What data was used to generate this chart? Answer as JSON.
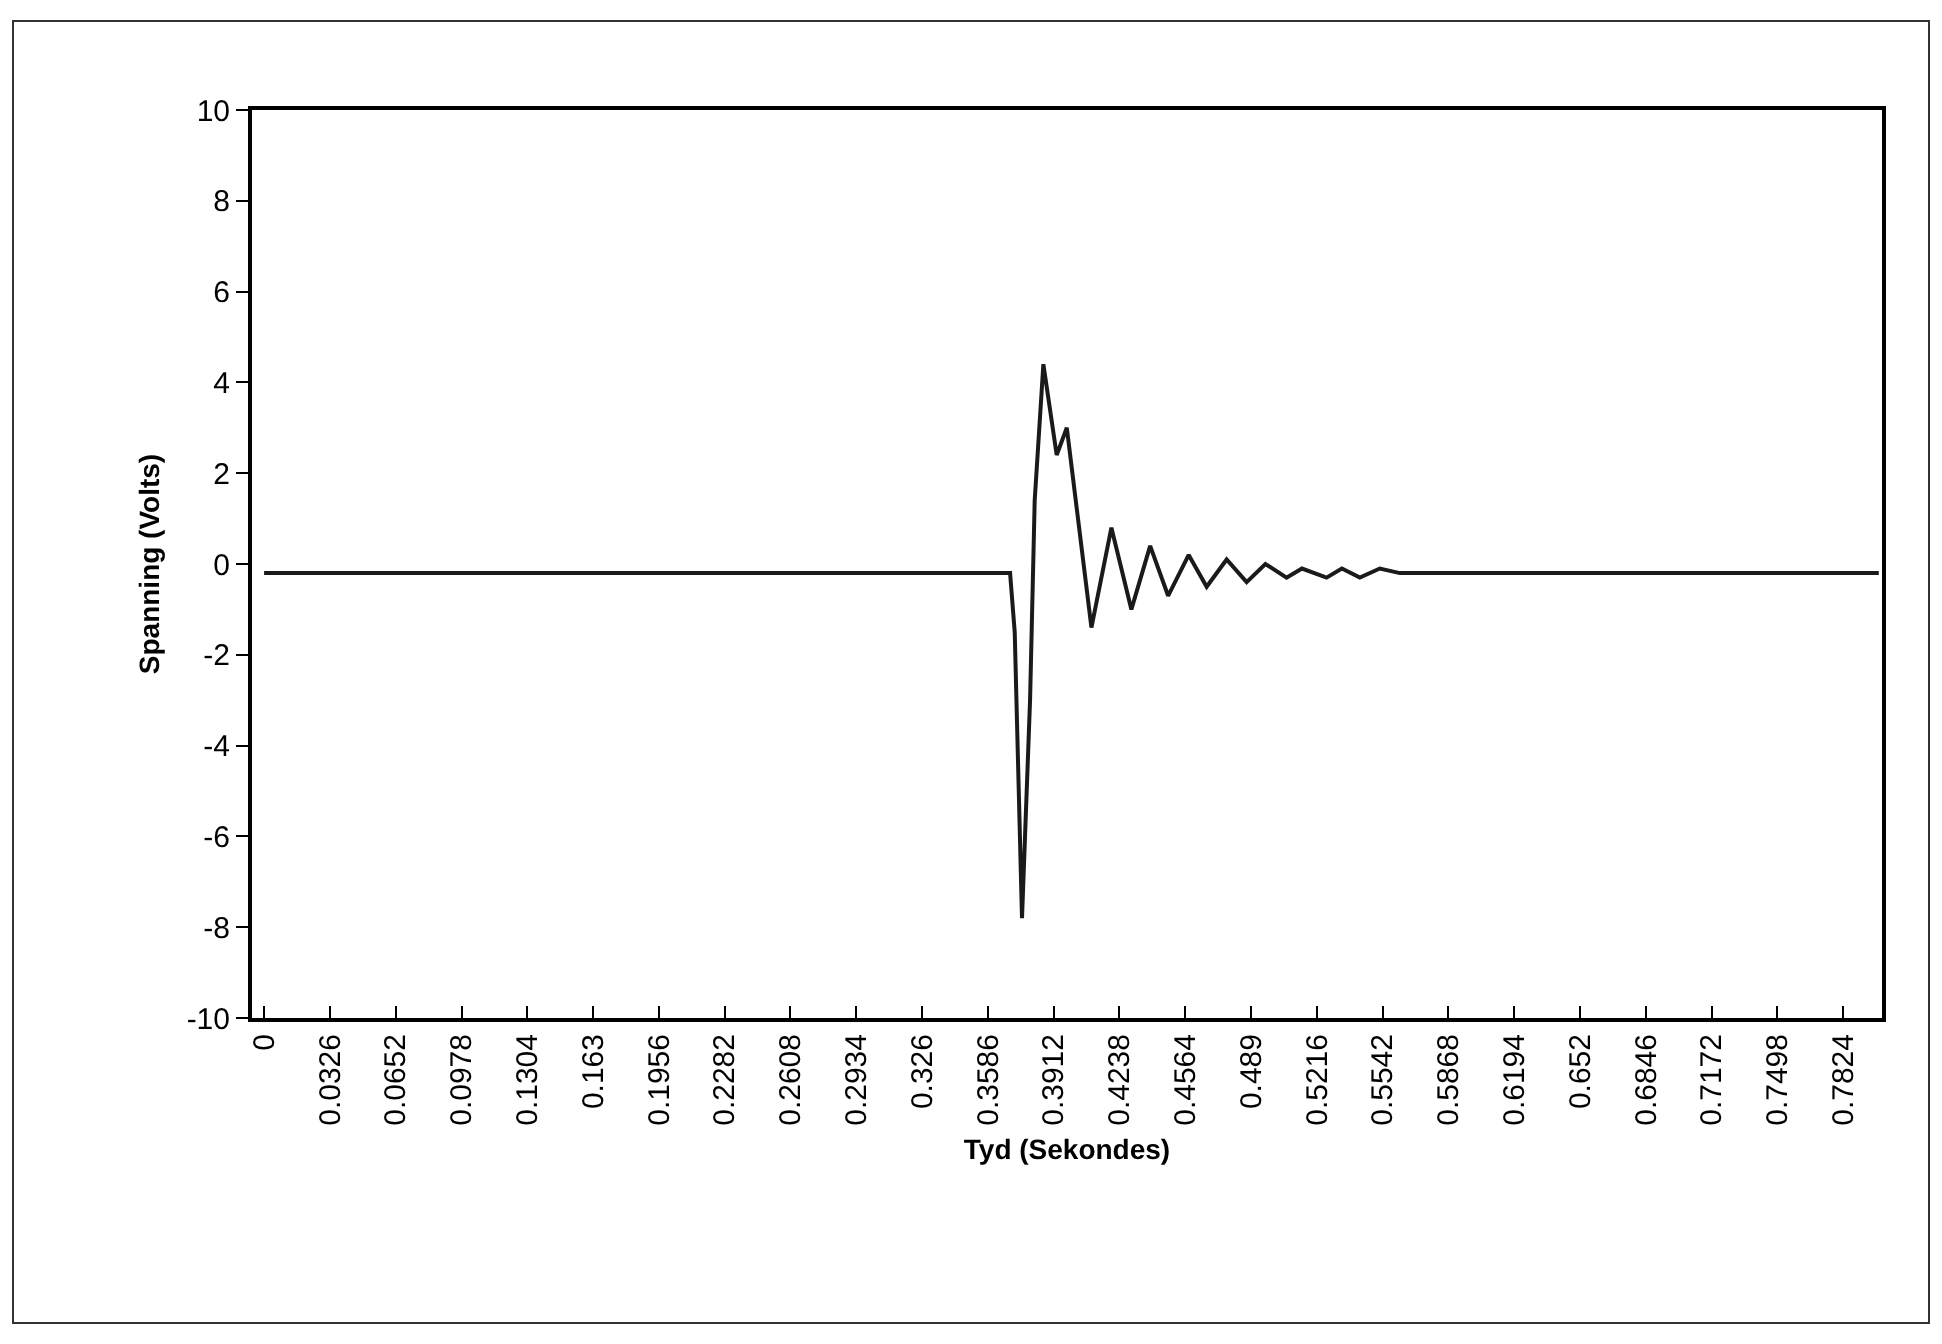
{
  "chart_data": {
    "type": "line",
    "xlabel": "Tyd (Sekondes)",
    "ylabel": "Spanning (Volts)",
    "x": [
      0,
      0.3696,
      0.3719,
      0.3755,
      0.3795,
      0.3818,
      0.3861,
      0.3927,
      0.3977,
      0.4099,
      0.4198,
      0.4297,
      0.439,
      0.4479,
      0.4581,
      0.467,
      0.4769,
      0.4868,
      0.4961,
      0.5066,
      0.5142,
      0.5264,
      0.534,
      0.5429,
      0.5528,
      0.5627,
      0.8
    ],
    "series": [
      {
        "color": "#1a1a1a",
        "values": [
          -0.2,
          -0.2,
          -1.5,
          -7.8,
          -3.0,
          1.4,
          4.4,
          2.4,
          3.0,
          -1.4,
          0.8,
          -1.0,
          0.4,
          -0.7,
          0.2,
          -0.5,
          0.1,
          -0.4,
          0.0,
          -0.3,
          -0.1,
          -0.3,
          -0.1,
          -0.3,
          -0.1,
          -0.2,
          -0.2
        ]
      }
    ],
    "xlim": [
      -0.006,
      0.8016
    ],
    "xticks": [
      0,
      0.0326,
      0.0652,
      0.0978,
      0.1304,
      0.163,
      0.1956,
      0.2282,
      0.2608,
      0.2934,
      0.326,
      0.3586,
      0.3912,
      0.4238,
      0.4564,
      0.489,
      0.5216,
      0.5542,
      0.5868,
      0.6194,
      0.652,
      0.6846,
      0.7172,
      0.7498,
      0.7824
    ],
    "ylim": [
      -10,
      10
    ],
    "yticks": [
      -10,
      -8,
      -6,
      -4,
      -2,
      0,
      2,
      4,
      6,
      8,
      10
    ],
    "grid": false,
    "marker": "none",
    "line_style": "solid"
  }
}
